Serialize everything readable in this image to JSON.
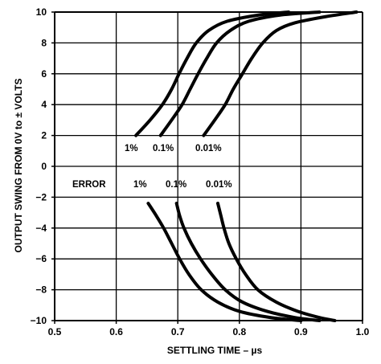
{
  "chart_data": {
    "type": "line",
    "xlabel": "SETTLING TIME – µs",
    "ylabel": "OUTPUT SWING FROM 0V to ± VOLTS",
    "xlim": [
      0.5,
      1.0
    ],
    "ylim": [
      -10,
      10
    ],
    "x_ticks": [
      "0.5",
      "0.6",
      "0.7",
      "0.8",
      "0.9",
      "1.0"
    ],
    "y_ticks": [
      "10",
      "8",
      "6",
      "4",
      "2",
      "0",
      "−2",
      "−4",
      "−6",
      "−8",
      "−10"
    ],
    "x_tick_values": [
      0.5,
      0.6,
      0.7,
      0.8,
      0.9,
      1.0
    ],
    "y_tick_values": [
      10,
      8,
      6,
      4,
      2,
      0,
      -2,
      -4,
      -6,
      -8,
      -10
    ],
    "grid": true,
    "legend": "none",
    "series": [
      {
        "id": "pos-1",
        "points": [
          [
            0.632,
            2
          ],
          [
            0.655,
            3
          ],
          [
            0.675,
            4
          ],
          [
            0.69,
            5
          ],
          [
            0.702,
            6
          ],
          [
            0.715,
            7
          ],
          [
            0.73,
            8
          ],
          [
            0.75,
            8.8
          ],
          [
            0.78,
            9.4
          ],
          [
            0.83,
            9.8
          ],
          [
            0.88,
            10
          ]
        ]
      },
      {
        "id": "pos-0.1",
        "points": [
          [
            0.672,
            2
          ],
          [
            0.69,
            3
          ],
          [
            0.707,
            4
          ],
          [
            0.72,
            5
          ],
          [
            0.733,
            6
          ],
          [
            0.747,
            7
          ],
          [
            0.763,
            8
          ],
          [
            0.785,
            8.8
          ],
          [
            0.815,
            9.4
          ],
          [
            0.865,
            9.8
          ],
          [
            0.93,
            10
          ]
        ]
      },
      {
        "id": "pos-0.01",
        "points": [
          [
            0.742,
            2
          ],
          [
            0.76,
            3
          ],
          [
            0.777,
            4
          ],
          [
            0.79,
            5
          ],
          [
            0.805,
            6
          ],
          [
            0.82,
            7
          ],
          [
            0.838,
            8
          ],
          [
            0.86,
            8.8
          ],
          [
            0.89,
            9.3
          ],
          [
            0.94,
            9.7
          ],
          [
            0.99,
            10
          ]
        ]
      },
      {
        "id": "neg-1",
        "points": [
          [
            0.652,
            -2.4
          ],
          [
            0.665,
            -3.2
          ],
          [
            0.677,
            -4
          ],
          [
            0.69,
            -5
          ],
          [
            0.703,
            -6
          ],
          [
            0.718,
            -7
          ],
          [
            0.738,
            -8
          ],
          [
            0.765,
            -8.8
          ],
          [
            0.8,
            -9.4
          ],
          [
            0.85,
            -9.8
          ],
          [
            0.9,
            -10
          ]
        ]
      },
      {
        "id": "neg-0.1",
        "points": [
          [
            0.698,
            -2.4
          ],
          [
            0.703,
            -3.2
          ],
          [
            0.71,
            -4
          ],
          [
            0.722,
            -5
          ],
          [
            0.737,
            -6
          ],
          [
            0.755,
            -7
          ],
          [
            0.777,
            -8
          ],
          [
            0.805,
            -8.8
          ],
          [
            0.845,
            -9.4
          ],
          [
            0.89,
            -9.8
          ],
          [
            0.93,
            -10
          ]
        ]
      },
      {
        "id": "neg-0.01",
        "points": [
          [
            0.765,
            -2.4
          ],
          [
            0.77,
            -3.2
          ],
          [
            0.775,
            -4
          ],
          [
            0.783,
            -5
          ],
          [
            0.795,
            -6
          ],
          [
            0.81,
            -7
          ],
          [
            0.83,
            -8
          ],
          [
            0.86,
            -8.8
          ],
          [
            0.895,
            -9.4
          ],
          [
            0.93,
            -9.8
          ],
          [
            0.955,
            -10
          ]
        ]
      }
    ],
    "annotations": {
      "pos_1": "1%",
      "pos_01": "0.1%",
      "pos_001": "0.01%",
      "error": "ERROR",
      "neg_1": "1%",
      "neg_01": "0.1%",
      "neg_001": "0.01%"
    }
  }
}
